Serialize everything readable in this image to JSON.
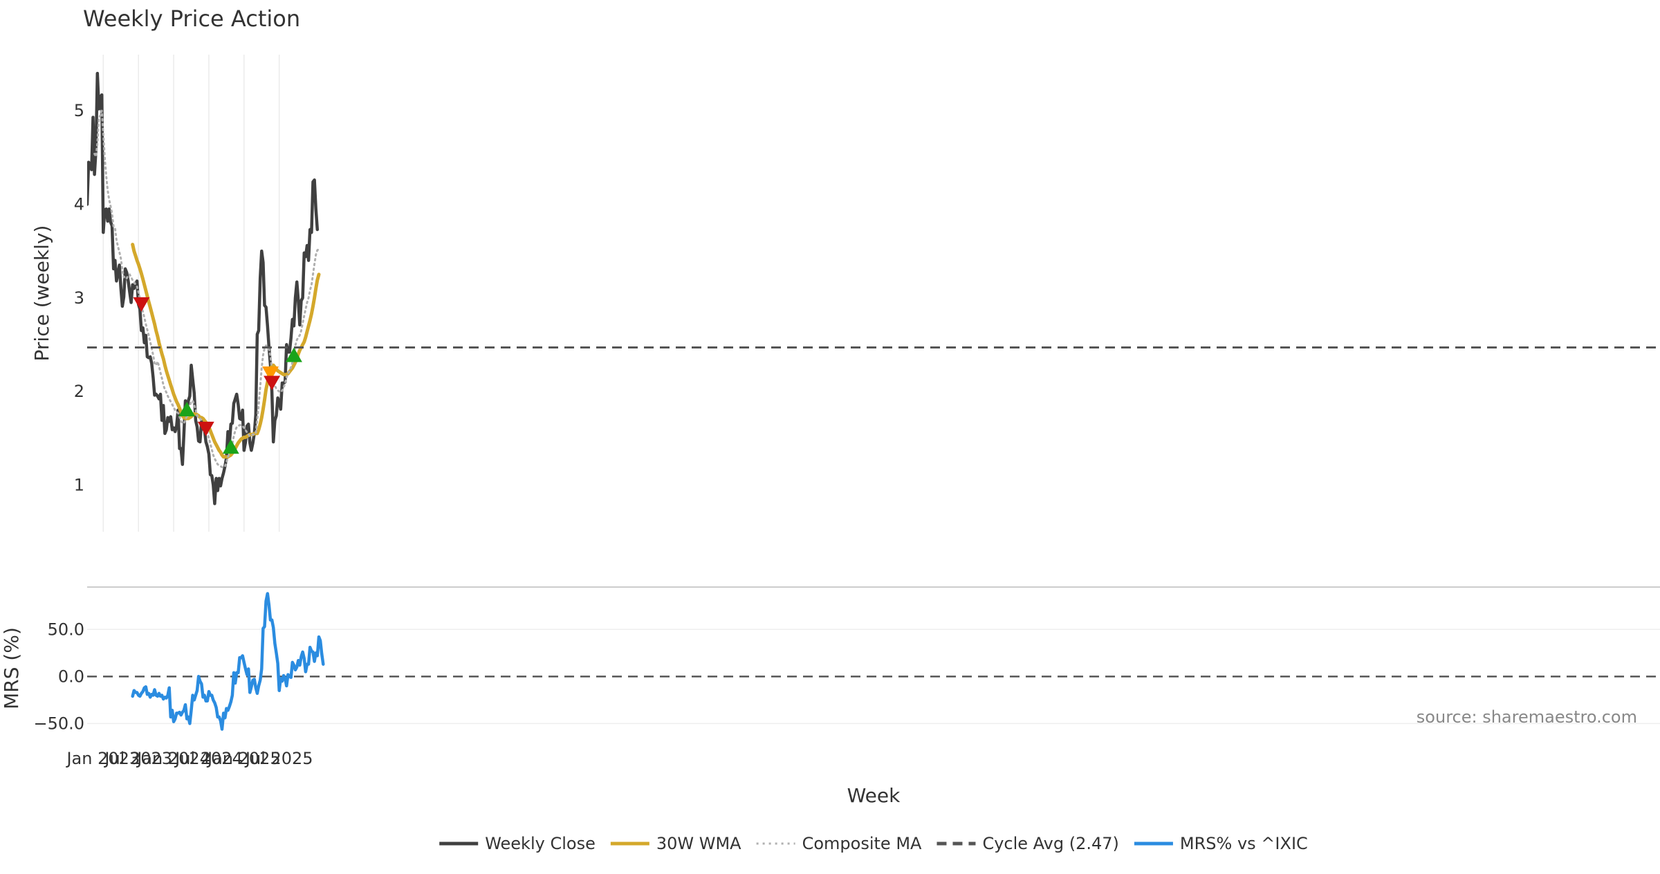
{
  "chart_data": [
    {
      "panel": "price",
      "type": "line",
      "title": "Weekly Price Action",
      "ylabel": "Price (weekly)",
      "ylim": [
        0.5,
        5.6
      ],
      "yticks": [
        1,
        2,
        3,
        4,
        5
      ],
      "grid": "vertical",
      "start_week": "2022-10-17",
      "series": [
        {
          "name": "Weekly Close",
          "color": "#404040",
          "style": "solid",
          "values": [
            4.0,
            4.45,
            4.42,
            4.37,
            4.93,
            4.32,
            4.58,
            5.4,
            5.02,
            5.15,
            5.17,
            3.7,
            3.94,
            3.95,
            3.82,
            3.95,
            3.81,
            3.77,
            3.31,
            3.4,
            3.18,
            3.26,
            3.35,
            3.1,
            2.91,
            3.01,
            3.31,
            3.27,
            3.18,
            3.06,
            2.95,
            3.14,
            3.1,
            3.15,
            3.18,
            2.93,
            2.88,
            2.65,
            2.68,
            2.52,
            2.6,
            2.37,
            2.36,
            2.37,
            2.3,
            2.15,
            1.96,
            1.97,
            1.95,
            1.92,
            1.97,
            1.69,
            1.85,
            1.55,
            1.59,
            1.72,
            1.68,
            1.73,
            1.59,
            1.61,
            1.57,
            1.63,
            1.8,
            1.39,
            1.39,
            1.22,
            1.55,
            1.9,
            1.8,
            1.9,
            1.95,
            2.28,
            2.13,
            1.98,
            1.69,
            1.62,
            1.47,
            1.46,
            1.68,
            1.6,
            1.6,
            1.46,
            1.41,
            1.33,
            1.11,
            1.1,
            1.0,
            0.8,
            1.07,
            0.94,
            1.07,
            0.99,
            1.07,
            1.13,
            1.2,
            1.29,
            1.57,
            1.43,
            1.65,
            1.66,
            1.87,
            1.92,
            1.97,
            1.86,
            1.71,
            1.7,
            1.8,
            1.37,
            1.46,
            1.63,
            1.65,
            1.45,
            1.37,
            1.45,
            1.55,
            1.75,
            2.61,
            2.65,
            3.21,
            3.5,
            3.38,
            2.92,
            2.9,
            2.7,
            2.47,
            2.28,
            2.0,
            1.46,
            1.69,
            1.74,
            1.93,
            1.89,
            1.81,
            2.09,
            2.09,
            2.1,
            2.5,
            2.42,
            2.42,
            2.57,
            2.77,
            2.7,
            3.0,
            3.17,
            2.97,
            2.71,
            2.97,
            3.0,
            3.48,
            3.44,
            3.56,
            3.4,
            3.73,
            3.7,
            4.24,
            4.26,
            3.95,
            3.73
          ]
        },
        {
          "name": "30W WMA",
          "color": "#d4a82b",
          "style": "solid",
          "values": [
            null,
            null,
            null,
            null,
            null,
            null,
            null,
            null,
            null,
            null,
            null,
            null,
            null,
            null,
            null,
            null,
            null,
            null,
            null,
            null,
            null,
            null,
            null,
            null,
            null,
            null,
            null,
            null,
            null,
            null,
            null,
            3.57,
            3.5,
            3.45,
            3.4,
            3.36,
            3.31,
            3.26,
            3.2,
            3.14,
            3.08,
            3.02,
            2.96,
            2.9,
            2.84,
            2.78,
            2.72,
            2.65,
            2.59,
            2.52,
            2.46,
            2.4,
            2.35,
            2.28,
            2.22,
            2.17,
            2.12,
            2.07,
            2.02,
            1.97,
            1.93,
            1.89,
            1.86,
            1.82,
            1.78,
            1.74,
            1.72,
            1.71,
            1.71,
            1.71,
            1.72,
            1.73,
            1.75,
            1.76,
            1.76,
            1.75,
            1.74,
            1.72,
            1.72,
            1.71,
            1.69,
            1.67,
            1.65,
            1.62,
            1.58,
            1.54,
            1.5,
            1.46,
            1.43,
            1.4,
            1.37,
            1.35,
            1.32,
            1.3,
            1.3,
            1.3,
            1.3,
            1.31,
            1.32,
            1.34,
            1.37,
            1.39,
            1.42,
            1.45,
            1.47,
            1.49,
            1.5,
            1.51,
            1.51,
            1.52,
            1.53,
            1.54,
            1.54,
            1.54,
            1.55,
            1.55,
            1.55,
            1.59,
            1.65,
            1.72,
            1.81,
            1.91,
            2.02,
            2.1,
            2.18,
            2.23,
            2.27,
            2.28,
            2.26,
            2.24,
            2.22,
            2.21,
            2.2,
            2.19,
            2.18,
            2.18,
            2.18,
            2.19,
            2.21,
            2.23,
            2.25,
            2.28,
            2.31,
            2.35,
            2.4,
            2.44,
            2.47,
            2.5,
            2.53,
            2.58,
            2.64,
            2.7,
            2.76,
            2.83,
            2.91,
            3.0,
            3.1,
            3.19,
            3.25
          ]
        },
        {
          "name": "Composite MA",
          "color": "#b0b0b0",
          "style": "dotted",
          "values": [
            null,
            null,
            null,
            null,
            null,
            4.54,
            4.51,
            4.65,
            4.92,
            4.95,
            5.0,
            4.76,
            4.5,
            4.3,
            4.15,
            4.05,
            3.98,
            3.9,
            3.76,
            3.75,
            3.62,
            3.55,
            3.49,
            3.42,
            3.3,
            3.22,
            3.23,
            3.21,
            3.24,
            3.25,
            3.22,
            3.19,
            3.17,
            3.14,
            3.12,
            3.06,
            2.99,
            2.92,
            2.85,
            2.79,
            2.72,
            2.66,
            2.6,
            2.53,
            2.46,
            2.39,
            2.3,
            2.28,
            2.32,
            2.27,
            2.2,
            2.14,
            2.07,
            2.02,
            1.99,
            1.95,
            1.92,
            1.89,
            1.86,
            1.83,
            1.8,
            1.78,
            1.77,
            1.73,
            1.68,
            1.66,
            1.66,
            1.69,
            1.74,
            1.81,
            1.85,
            1.89,
            1.9,
            1.86,
            1.8,
            1.74,
            1.72,
            1.71,
            1.69,
            1.66,
            1.63,
            1.6,
            1.56,
            1.5,
            1.44,
            1.38,
            1.32,
            1.28,
            1.25,
            1.22,
            1.21,
            1.2,
            1.19,
            1.19,
            1.2,
            1.24,
            1.3,
            1.33,
            1.38,
            1.44,
            1.52,
            1.58,
            1.62,
            1.63,
            1.64,
            1.64,
            1.63,
            1.61,
            1.59,
            1.56,
            1.54,
            1.52,
            1.53,
            1.54,
            1.54,
            1.55,
            1.7,
            1.86,
            2.05,
            2.25,
            2.39,
            2.46,
            2.49,
            2.47,
            2.45,
            2.38,
            2.24,
            2.12,
            2.06,
            2.03,
            2.01,
            2.0,
            1.99,
            2.01,
            2.04,
            2.09,
            2.15,
            2.19,
            2.22,
            2.26,
            2.31,
            2.38,
            2.49,
            2.55,
            2.58,
            2.6,
            2.65,
            2.73,
            2.81,
            2.88,
            2.95,
            3.0,
            3.08,
            3.14,
            3.25,
            3.36,
            3.46,
            3.51,
            3.52
          ]
        },
        {
          "name": "Cycle Avg (2.47)",
          "color": "#555555",
          "style": "dashed",
          "value": 2.47
        }
      ],
      "markers": [
        {
          "week": 37,
          "value": 2.94,
          "shape": "triangle-down",
          "color": "#cc1111"
        },
        {
          "week": 68,
          "value": 1.8,
          "shape": "triangle-up",
          "color": "#1aa31a"
        },
        {
          "week": 81,
          "value": 1.61,
          "shape": "triangle-down",
          "color": "#cc1111"
        },
        {
          "week": 98,
          "value": 1.4,
          "shape": "triangle-up",
          "color": "#1aa31a"
        },
        {
          "week": 125,
          "value": 2.2,
          "shape": "triangle-down",
          "color": "#ff9900"
        },
        {
          "week": 126,
          "value": 2.1,
          "shape": "triangle-down",
          "color": "#cc1111"
        },
        {
          "week": 141,
          "value": 2.38,
          "shape": "triangle-up",
          "color": "#1aa31a"
        }
      ]
    },
    {
      "panel": "mrs",
      "type": "line",
      "ylabel": "MRS (%)",
      "ylim": [
        -60,
        95
      ],
      "yticks": [
        -50.0,
        0.0,
        50.0
      ],
      "ytick_labels": [
        "−50.0",
        "0.0",
        "50.0"
      ],
      "zero_line": "dashed",
      "xlabel": "Week",
      "xtick_labels": [
        {
          "label": "Jan 2023",
          "week": 11
        },
        {
          "label": "Jul 2023",
          "week": 35
        },
        {
          "label": "Jan 2024",
          "week": 59
        },
        {
          "label": "Jul 2024",
          "week": 83
        },
        {
          "label": "Jan 2025",
          "week": 107
        },
        {
          "label": "Jul 2025",
          "week": 131
        }
      ],
      "annotation": "source: sharemaestro.com",
      "series": [
        {
          "name": "MRS% vs ^IXIC",
          "color": "#2b8ce0",
          "style": "solid",
          "values": [
            null,
            null,
            null,
            null,
            null,
            null,
            null,
            null,
            null,
            null,
            null,
            null,
            null,
            null,
            null,
            null,
            null,
            null,
            null,
            null,
            null,
            null,
            null,
            null,
            null,
            null,
            null,
            null,
            null,
            null,
            null,
            -21,
            -15,
            -17,
            -17,
            -20,
            -21,
            -18,
            -16,
            -12,
            -11,
            -19,
            -18,
            -22,
            -19,
            -20,
            -14,
            -20,
            -21,
            -18,
            -21,
            -20,
            -24,
            -22,
            -23,
            -20,
            -12,
            -43,
            -36,
            -48,
            -45,
            -39,
            -39,
            -38,
            -41,
            -38,
            -36,
            -30,
            -45,
            -43,
            -50,
            -36,
            -20,
            -25,
            -20,
            -15,
            0,
            -5,
            -8,
            -22,
            -20,
            -26,
            -26,
            -16,
            -20,
            -20,
            -25,
            -28,
            -33,
            -43,
            -43,
            -47,
            -56,
            -39,
            -44,
            -34,
            -36,
            -32,
            -27,
            -20,
            4,
            -7,
            4,
            4,
            20,
            20,
            22,
            15,
            8,
            2,
            8,
            -17,
            -11,
            -4,
            -3,
            -12,
            -18,
            -10,
            -4,
            8,
            51,
            53,
            80,
            88,
            76,
            60,
            60,
            52,
            35,
            25,
            14,
            -15,
            -2,
            -5,
            1,
            -2,
            -10,
            2,
            0,
            -1,
            15,
            12,
            7,
            10,
            17,
            12,
            21,
            26,
            19,
            5,
            13,
            13,
            31,
            27,
            26,
            16,
            25,
            22,
            42,
            38,
            24,
            13
          ]
        }
      ]
    }
  ],
  "legend": [
    {
      "label": "Weekly Close",
      "color": "#404040",
      "style": "solid"
    },
    {
      "label": "30W WMA",
      "color": "#d4a82b",
      "style": "solid"
    },
    {
      "label": "Composite MA",
      "color": "#b0b0b0",
      "style": "dotted"
    },
    {
      "label": "Cycle Avg (2.47)",
      "color": "#555555",
      "style": "dashed"
    },
    {
      "label": "MRS% vs ^IXIC",
      "color": "#2b8ce0",
      "style": "solid"
    }
  ],
  "legend_position": "bottom-center"
}
